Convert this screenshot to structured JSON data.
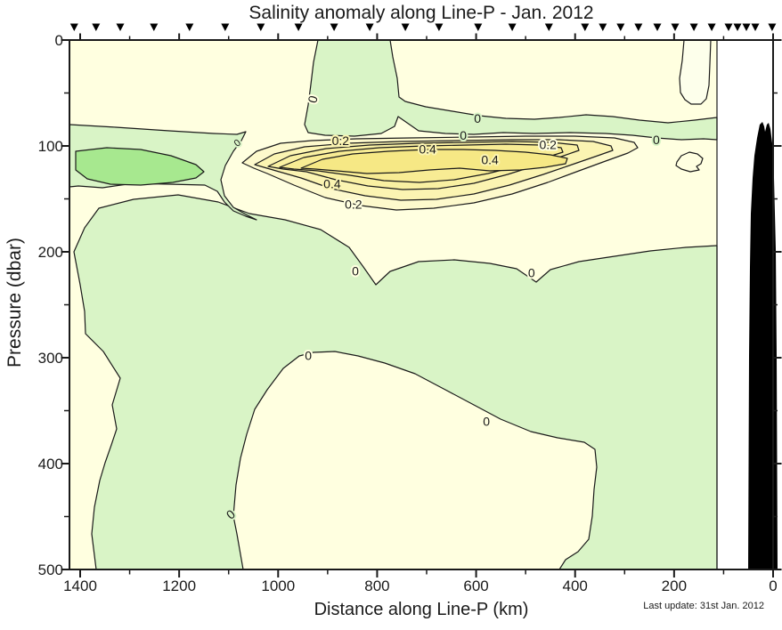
{
  "footer_note": "Last update: 31st Jan. 2012",
  "chart_data": {
    "type": "contour",
    "title": "Salinity anomaly along Line-P - Jan. 2012",
    "xlabel": "Distance along Line-P (km)",
    "ylabel": "Pressure (dbar)",
    "x_axis": {
      "min": 0,
      "max": 1421,
      "reversed": true,
      "major_ticks": [
        1400,
        1200,
        1000,
        800,
        600,
        400,
        200,
        0
      ],
      "minor_ticks": [
        1300,
        1100,
        900,
        700,
        500,
        300,
        100
      ]
    },
    "y_axis": {
      "min": 0,
      "max": 500,
      "inverted": true,
      "major_ticks": [
        0,
        100,
        200,
        300,
        400,
        500
      ],
      "minor_ticks": [
        50,
        150,
        250,
        350,
        450
      ]
    },
    "contour_interval": 0.1,
    "labeled_levels": [
      0,
      0.2,
      0.4
    ],
    "station_positions_km": [
      1412,
      1368,
      1319,
      1251,
      1179,
      1107,
      1035,
      959,
      887,
      815,
      743,
      675,
      596,
      527,
      453,
      380,
      344,
      308,
      272,
      234,
      198,
      160,
      124,
      90,
      72,
      54,
      36,
      2
    ],
    "contour_labels": [
      {
        "text": "0",
        "km": 930,
        "dbar": 56,
        "halo": "cream",
        "rot": -75,
        "small": false
      },
      {
        "text": "0",
        "km": 597,
        "dbar": 74,
        "halo": "green",
        "rot": 0,
        "small": false
      },
      {
        "text": "0",
        "km": 626,
        "dbar": 90,
        "halo": "green",
        "rot": 0,
        "small": false
      },
      {
        "text": "0",
        "km": 1083,
        "dbar": 97,
        "halo": "green",
        "rot": -40,
        "small": true
      },
      {
        "text": "0.2",
        "km": 874,
        "dbar": 95,
        "halo": "yellow",
        "rot": 0,
        "small": false
      },
      {
        "text": "0.4",
        "km": 698,
        "dbar": 103,
        "halo": "yellow",
        "rot": 0,
        "small": false
      },
      {
        "text": "0",
        "km": 236,
        "dbar": 94,
        "halo": "green",
        "rot": 0,
        "small": false
      },
      {
        "text": "0.4",
        "km": 572,
        "dbar": 113,
        "halo": "yellow",
        "rot": 0,
        "small": false
      },
      {
        "text": "0.4",
        "km": 891,
        "dbar": 136,
        "halo": "yellow",
        "rot": 0,
        "small": false
      },
      {
        "text": "0.2",
        "km": 848,
        "dbar": 155,
        "halo": "cream",
        "rot": 0,
        "small": false
      },
      {
        "text": "0.2",
        "km": 455,
        "dbar": 99,
        "halo": "cream",
        "rot": 0,
        "small": false
      },
      {
        "text": "0",
        "km": 844,
        "dbar": 218,
        "halo": "cream",
        "rot": 0,
        "small": false
      },
      {
        "text": "0",
        "km": 488,
        "dbar": 220,
        "halo": "cream",
        "rot": 0,
        "small": false
      },
      {
        "text": "0",
        "km": 939,
        "dbar": 298,
        "halo": "cream",
        "rot": 0,
        "small": false
      },
      {
        "text": "0",
        "km": 579,
        "dbar": 360,
        "halo": "cream",
        "rot": 0,
        "small": false
      },
      {
        "text": "0",
        "km": 1096,
        "dbar": 448,
        "halo": "green",
        "rot": -40,
        "small": false
      }
    ],
    "regions": [
      {
        "name": "surface-positive-cap",
        "extent": "0-60 dbar across most of section",
        "level": "0 to 0.2"
      },
      {
        "name": "subsurface-positive-core",
        "extent": "90-160 dbar, 400-950 km",
        "level": "0.2 to >0.4"
      },
      {
        "name": "negative-left-band",
        "extent": "80-180 dbar, 1050-1420 km",
        "level": "-0.2 to 0",
        "core": "<-0.2 near 1150-1400 km"
      },
      {
        "name": "upper-negative-tongue",
        "extent": "0-100 dbar, 450-950 km",
        "level": "below 0"
      },
      {
        "name": "deep-negative-pool",
        "extent": "200-500 dbar full width",
        "level": "-0.2 to 0"
      },
      {
        "name": "deep-positive-dome",
        "extent": "300-500 dbar, 430-1080 km",
        "level": "0 to 0.2"
      },
      {
        "name": "coastal-seafloor",
        "extent": "inside ~50 km, shallower than ~80 dbar",
        "fill": "black"
      }
    ],
    "colors": {
      "background": "#FFFFFF",
      "cream": "#FFFFE0",
      "green_light": "#D9F4C6",
      "green_mid": "#A7E88F",
      "yellow_01": "#FDF9CC",
      "yellow_02": "#FBF4B2",
      "yellow_03": "#F9F0A2",
      "yellow_04": "#F8EC94",
      "yellow_05": "#F6E885",
      "pale_zero": "#FDFFEB",
      "land": "#000000",
      "line": "#1A1A1A"
    }
  }
}
